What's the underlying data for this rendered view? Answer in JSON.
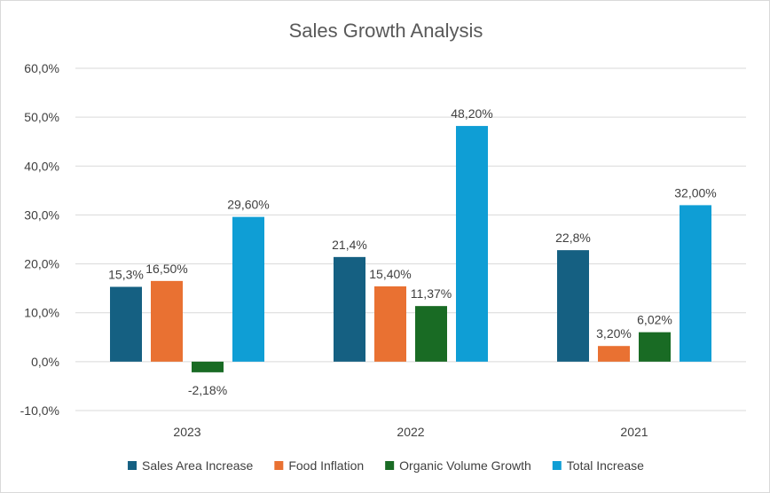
{
  "chart_data": {
    "type": "bar",
    "title": "Sales Growth Analysis",
    "xlabel": "",
    "ylabel": "",
    "categories": [
      "2023",
      "2022",
      "2021"
    ],
    "ylim": [
      -10,
      60
    ],
    "ytick_step": 10,
    "ytick_labels": [
      "-10,0%",
      "0,0%",
      "10,0%",
      "20,0%",
      "30,0%",
      "40,0%",
      "50,0%",
      "60,0%"
    ],
    "grid": true,
    "legend_position": "bottom",
    "series": [
      {
        "name": "Sales Area Increase",
        "color": "#156082",
        "values": [
          15.3,
          21.4,
          22.8
        ],
        "labels": [
          "15,3%",
          "21,4%",
          "22,8%"
        ]
      },
      {
        "name": "Food Inflation",
        "color": "#E97132",
        "values": [
          16.5,
          15.4,
          3.2
        ],
        "labels": [
          "16,50%",
          "15,40%",
          "3,20%"
        ]
      },
      {
        "name": "Organic Volume Growth",
        "color": "#196B24",
        "values": [
          -2.18,
          11.37,
          6.02
        ],
        "labels": [
          "-2,18%",
          "11,37%",
          "6,02%"
        ]
      },
      {
        "name": "Total Increase",
        "color": "#0F9ED5",
        "values": [
          29.6,
          48.2,
          32.0
        ],
        "labels": [
          "29,60%",
          "48,20%",
          "32,00%"
        ]
      }
    ]
  }
}
